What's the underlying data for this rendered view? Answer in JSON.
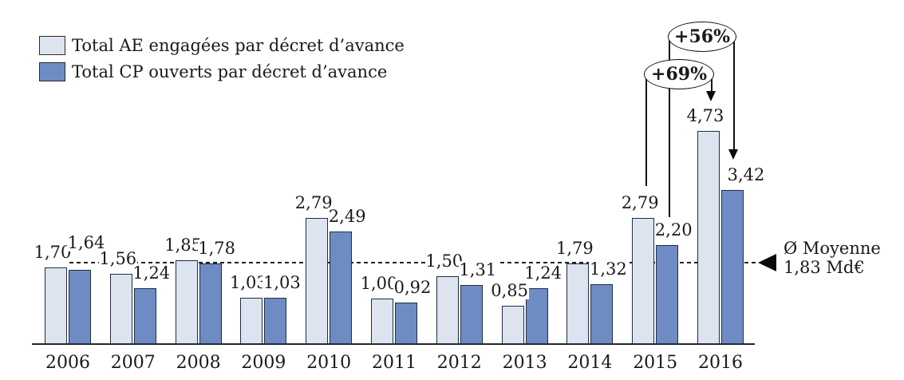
{
  "legend": {
    "items": [
      {
        "label": "Total AE engagées par décret d’avance"
      },
      {
        "label": "Total CP ouverts par décret d’avance"
      }
    ]
  },
  "annotations": [
    {
      "label": "+56%",
      "meaning": "increase of CP from 2015 to 2016"
    },
    {
      "label": "+69%",
      "meaning": "increase of AE from 2015 to 2016"
    }
  ],
  "average": {
    "line1": "Ø Moyenne",
    "line2": "1,83 Md€",
    "value": 1.83
  },
  "chart_data": {
    "type": "bar",
    "title": "",
    "xlabel": "",
    "ylabel": "",
    "unit": "Md€",
    "ylim": [
      0,
      5
    ],
    "grid": false,
    "legend_position": "top-left",
    "categories": [
      "2006",
      "2007",
      "2008",
      "2009",
      "2010",
      "2011",
      "2012",
      "2013",
      "2014",
      "2015",
      "2016"
    ],
    "series": [
      {
        "name": "Total AE engagées par décret d’avance",
        "key": "ae",
        "color": "#dde4ef",
        "values": [
          1.7,
          1.56,
          1.85,
          1.03,
          2.79,
          1.0,
          1.5,
          0.85,
          1.79,
          2.79,
          4.73
        ],
        "labels": [
          "1,70",
          "1,56",
          "1,85",
          "1,03",
          "2,79",
          "1,00",
          "1,50",
          "0,85",
          "1,79",
          "2,79",
          "4,73"
        ]
      },
      {
        "name": "Total CP ouverts par décret d’avance",
        "key": "cp",
        "color": "#6e8cc3",
        "values": [
          1.64,
          1.24,
          1.78,
          1.03,
          2.49,
          0.92,
          1.31,
          1.24,
          1.32,
          2.2,
          3.42
        ],
        "labels": [
          "1,64",
          "1,24",
          "1,78",
          "1,03",
          "2,49",
          "0,92",
          "1,31",
          "1,24",
          "1,32",
          "2,20",
          "3,42"
        ]
      }
    ],
    "average_line": {
      "value": 1.83,
      "style": "dashed"
    },
    "label_adjust": {
      "cp": {
        "0": {
          "dy": -15
        },
        "10": {
          "dx": 9
        }
      }
    }
  }
}
